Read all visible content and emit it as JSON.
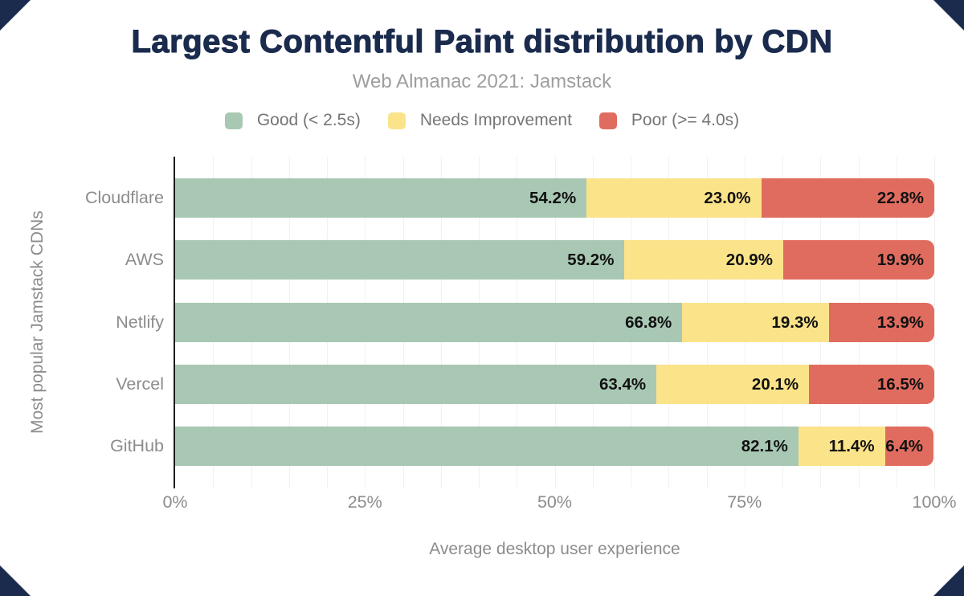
{
  "colors": {
    "title": "#1a2b4d",
    "subtitle": "#9e9e9e",
    "axis_text": "#8c8c8c",
    "legend_text": "#757575",
    "value_label": "#111111",
    "grid": "#f1f1f1",
    "axis_line": "#1c1c1c",
    "corner": "#1a2b4d",
    "good": "#a8c8b4",
    "needs_improvement": "#fbe38a",
    "poor": "#e06c5f"
  },
  "chart_data": {
    "type": "bar",
    "orientation": "horizontal",
    "stacked": true,
    "title": "Largest Contentful Paint distribution by CDN",
    "subtitle": "Web Almanac 2021: Jamstack",
    "categories": [
      "Cloudflare",
      "AWS",
      "Netlify",
      "Vercel",
      "GitHub"
    ],
    "series": [
      {
        "name": "Good (< 2.5s)",
        "color": "#a8c8b4",
        "values": [
          54.2,
          59.2,
          66.8,
          63.4,
          82.1
        ]
      },
      {
        "name": "Needs Improvement",
        "color": "#fbe38a",
        "values": [
          23.0,
          20.9,
          19.3,
          20.1,
          11.4
        ]
      },
      {
        "name": "Poor (>= 4.0s)",
        "color": "#e06c5f",
        "values": [
          22.8,
          19.9,
          13.9,
          16.5,
          6.4
        ]
      }
    ],
    "value_label_format": "{value}%",
    "xlabel": "Average desktop user experience",
    "ylabel": "Most popular Jamstack CDNs",
    "xticks": [
      {
        "label": "0%",
        "value": 0
      },
      {
        "label": "25%",
        "value": 25
      },
      {
        "label": "50%",
        "value": 50
      },
      {
        "label": "75%",
        "value": 75
      },
      {
        "label": "100%",
        "value": 100
      }
    ],
    "xlim": [
      0,
      100
    ],
    "grid": "vertical gridlines every 5%",
    "legend_position": "top"
  }
}
